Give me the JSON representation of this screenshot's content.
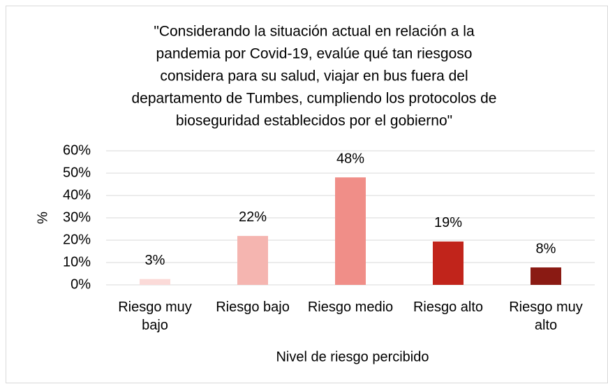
{
  "chart_data": {
    "type": "bar",
    "title": [
      "\"Considerando la situación actual en relación a la",
      "pandemia por Covid-19, evalúe qué tan riesgoso",
      "considera para su salud, viajar en bus fuera del",
      "departamento de Tumbes, cumpliendo los protocolos de",
      "bioseguridad establecidos por el gobierno\""
    ],
    "x_label": "Nivel de riesgo percibido",
    "y_label": "%",
    "categories": [
      "Riesgo muy bajo",
      "Riesgo bajo",
      "Riesgo medio",
      "Riesgo alto",
      "Riesgo muy alto"
    ],
    "values": [
      2.6,
      21.9,
      48.1,
      19.4,
      7.8
    ],
    "value_labels": [
      "3%",
      "22%",
      "48%",
      "19%",
      "8%"
    ],
    "colors": [
      "#fbdad8",
      "#f5b5b0",
      "#f08e88",
      "#c1241b",
      "#8a1a13"
    ],
    "ylim": [
      0,
      60
    ],
    "yticks": [
      {
        "value": 0,
        "label": "0%"
      },
      {
        "value": 10,
        "label": "10%"
      },
      {
        "value": 20,
        "label": "20%"
      },
      {
        "value": 30,
        "label": "30%"
      },
      {
        "value": 40,
        "label": "40%"
      },
      {
        "value": 50,
        "label": "50%"
      },
      {
        "value": 60,
        "label": "60%"
      }
    ],
    "grid": true
  }
}
